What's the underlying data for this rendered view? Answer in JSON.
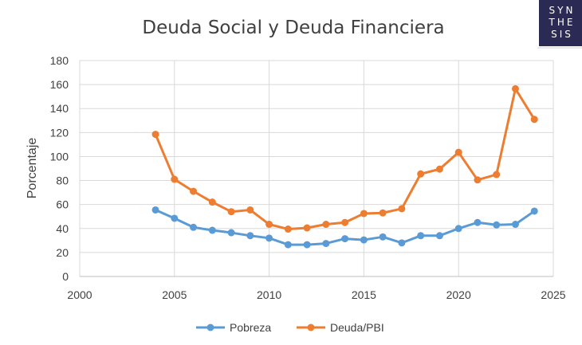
{
  "logo": {
    "lines": [
      "SYN",
      "THE",
      "SIS"
    ],
    "background": "#2a2a55",
    "text_color": "#ffffff"
  },
  "chart_data": {
    "type": "line",
    "title": "Deuda Social y Deuda Financiera",
    "xlabel": "",
    "ylabel": "Porcentaje",
    "xlim": [
      2000,
      2025
    ],
    "ylim": [
      0,
      180
    ],
    "xticks": [
      2000,
      2005,
      2010,
      2015,
      2020,
      2025
    ],
    "yticks": [
      0,
      20,
      40,
      60,
      80,
      100,
      120,
      140,
      160,
      180
    ],
    "grid": "horizontal",
    "legend_position": "bottom",
    "x": [
      2004,
      2005,
      2006,
      2007,
      2008,
      2009,
      2010,
      2011,
      2012,
      2013,
      2014,
      2015,
      2016,
      2017,
      2018,
      2019,
      2020,
      2021,
      2022,
      2023,
      2024
    ],
    "series": [
      {
        "name": "Pobreza",
        "color": "#5b9bd5",
        "values": [
          55.5,
          48.5,
          41,
          38.5,
          36.5,
          34,
          32,
          26.5,
          26.5,
          27.5,
          31.5,
          30.5,
          33,
          28,
          34,
          34,
          40,
          45,
          43,
          43.5,
          54.5
        ]
      },
      {
        "name": "Deuda/PBI",
        "color": "#ed7d31",
        "values": [
          118.5,
          81,
          71,
          62,
          54,
          55.5,
          43.5,
          39.5,
          40.5,
          43.5,
          45,
          52.5,
          53,
          56.5,
          85.5,
          89.5,
          103.5,
          80.5,
          85,
          156.5,
          131
        ]
      }
    ]
  }
}
